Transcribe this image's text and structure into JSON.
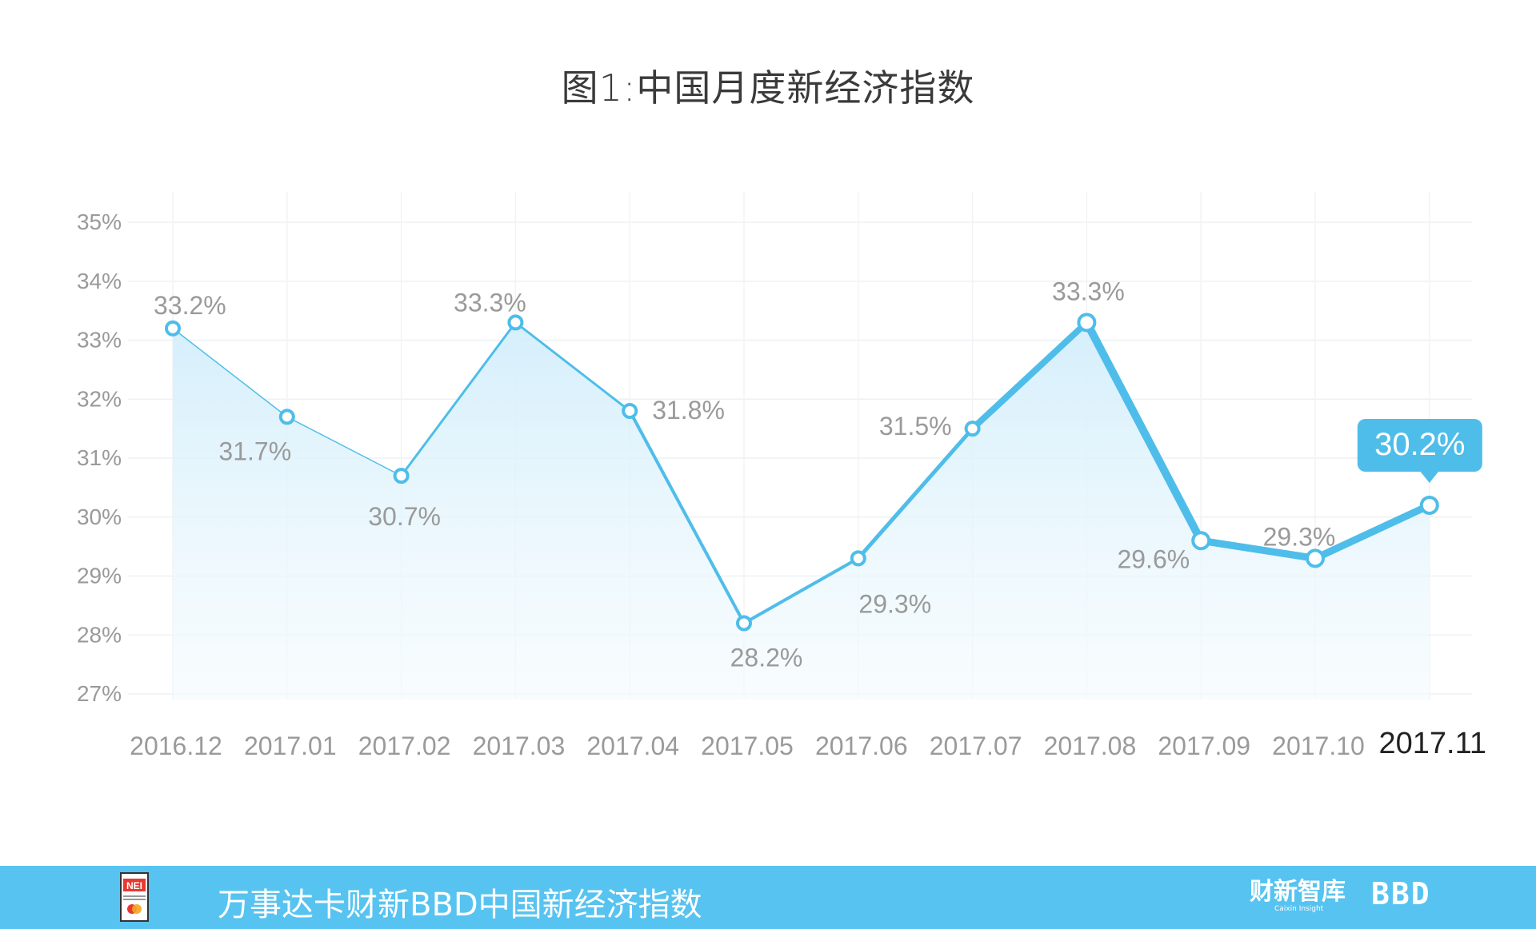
{
  "chart_data": {
    "type": "line",
    "title": "图1:中国月度新经济指数",
    "categories": [
      "2016.12",
      "2017.01",
      "2017.02",
      "2017.03",
      "2017.04",
      "2017.05",
      "2017.06",
      "2017.07",
      "2017.08",
      "2017.09",
      "2017.10",
      "2017.11"
    ],
    "values": [
      33.2,
      31.7,
      30.7,
      33.3,
      31.8,
      28.2,
      29.3,
      31.5,
      33.3,
      29.6,
      29.3,
      30.2
    ],
    "data_labels": [
      "33.2%",
      "31.7%",
      "30.7%",
      "33.3%",
      "31.8%",
      "28.2%",
      "29.3%",
      "31.5%",
      "33.3%",
      "29.6%",
      "29.3%",
      "30.2%"
    ],
    "y_ticks": [
      "27%",
      "28%",
      "29%",
      "30%",
      "31%",
      "32%",
      "33%",
      "34%",
      "35%"
    ],
    "ylim": [
      27,
      35
    ],
    "xlabel": "",
    "ylabel": "",
    "grid": true,
    "highlight_index": 11,
    "line_color": "#4fbde9",
    "fill_color": "#dff3fb"
  },
  "footer": {
    "title": "万事达卡财新BBD中国新经济指数",
    "logo_left_text": "NEI",
    "logo_right_main": "财新智库",
    "logo_right_sub": "Caixin Insight",
    "logo_bbd": "BBD",
    "bg_color": "#57c3f0"
  }
}
